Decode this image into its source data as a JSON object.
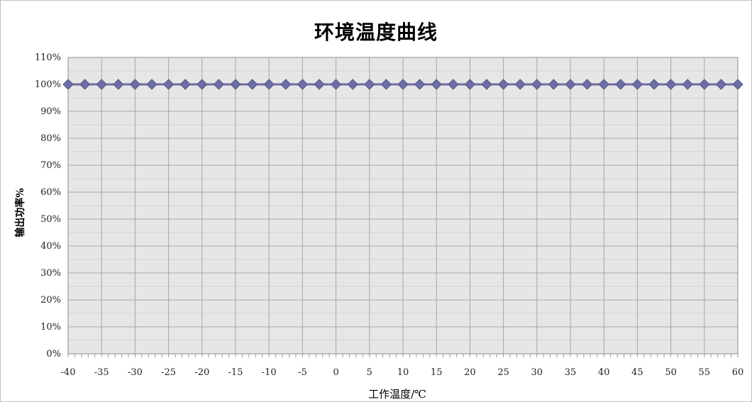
{
  "chart_data": {
    "type": "line",
    "title": "环境温度曲线",
    "xlabel": "工作温度/℃",
    "ylabel": "输出功率%",
    "x": [
      -40,
      -37.5,
      -35,
      -32.5,
      -30,
      -27.5,
      -25,
      -22.5,
      -20,
      -17.5,
      -15,
      -12.5,
      -10,
      -7.5,
      -5,
      -2.5,
      0,
      2.5,
      5,
      7.5,
      10,
      12.5,
      15,
      17.5,
      20,
      22.5,
      25,
      27.5,
      30,
      32.5,
      35,
      37.5,
      40,
      42.5,
      45,
      47.5,
      50,
      52.5,
      55,
      57.5,
      60
    ],
    "series": [
      {
        "values": [
          100,
          100,
          100,
          100,
          100,
          100,
          100,
          100,
          100,
          100,
          100,
          100,
          100,
          100,
          100,
          100,
          100,
          100,
          100,
          100,
          100,
          100,
          100,
          100,
          100,
          100,
          100,
          100,
          100,
          100,
          100,
          100,
          100,
          100,
          100,
          100,
          100,
          100,
          100,
          100,
          100
        ],
        "color": "#6b6fa3",
        "marker": "diamond"
      }
    ],
    "xlim": [
      -40,
      60
    ],
    "ylim": [
      0,
      110
    ],
    "x_ticks": [
      "-40",
      "-35",
      "-30",
      "-25",
      "-20",
      "-15",
      "-10",
      "-5",
      "0",
      "5",
      "10",
      "15",
      "20",
      "25",
      "30",
      "35",
      "40",
      "45",
      "50",
      "55",
      "60"
    ],
    "y_ticks": [
      "0%",
      "10%",
      "20%",
      "30%",
      "40%",
      "50%",
      "60%",
      "70%",
      "80%",
      "90%",
      "100%",
      "110%"
    ],
    "grid": true,
    "plot_background": "#e6e6e6",
    "gridline_color": "#a6a6a6",
    "legend": "none"
  }
}
